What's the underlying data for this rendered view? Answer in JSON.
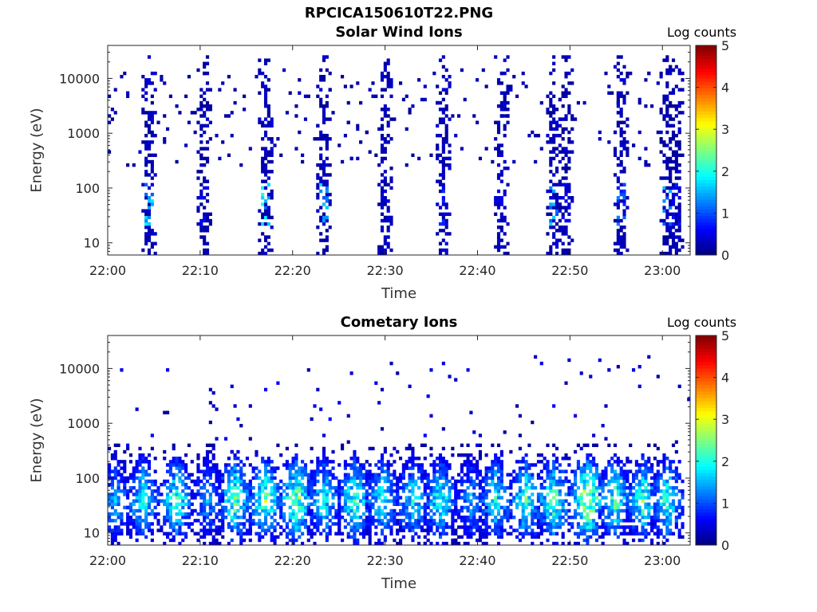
{
  "figure": {
    "title": "RPCICA150610T22.PNG"
  },
  "colorbar": {
    "label": "Log counts",
    "ticks": [
      "0",
      "1",
      "2",
      "3",
      "4",
      "5"
    ],
    "range": [
      0,
      5
    ],
    "colormap": "jet"
  },
  "chart_data": [
    {
      "type": "heatmap",
      "title": "Solar Wind Ions",
      "xlabel": "Time",
      "ylabel": "Energy (eV)",
      "x_ticks": [
        "22:00",
        "22:10",
        "22:20",
        "22:30",
        "22:40",
        "22:50",
        "23:00"
      ],
      "x_tick_minutes": [
        0,
        10,
        20,
        30,
        40,
        50,
        60
      ],
      "xlim_minutes": [
        0,
        63
      ],
      "y_ticks": [
        "10",
        "100",
        "1000",
        "10000"
      ],
      "y_tick_values": [
        10,
        100,
        1000,
        10000
      ],
      "ylim": [
        6,
        40000
      ],
      "yscale": "log",
      "colorbar_range": [
        0,
        5
      ],
      "bursts": [
        {
          "t": 4.2,
          "lo_val": 1.7,
          "scatter": 0.35
        },
        {
          "t": 10.3,
          "lo_val": 0.6,
          "scatter": 0.25
        },
        {
          "t": 16.8,
          "lo_val": 1.9,
          "scatter": 0.35
        },
        {
          "t": 23.3,
          "lo_val": 1.6,
          "scatter": 0.35
        },
        {
          "t": 29.8,
          "lo_val": 0.5,
          "scatter": 0.3
        },
        {
          "t": 36.3,
          "lo_val": 0.8,
          "scatter": 0.35
        },
        {
          "t": 42.5,
          "lo_val": 0.6,
          "scatter": 0.35
        },
        {
          "t": 48.0,
          "lo_val": 1.6,
          "scatter": 0.35
        },
        {
          "t": 49.5,
          "lo_val": 0.6,
          "scatter": 0.3
        },
        {
          "t": 55.5,
          "lo_val": 1.2,
          "scatter": 0.3
        },
        {
          "t": 60.3,
          "lo_val": 1.5,
          "scatter": 0.3
        },
        {
          "t": 61.5,
          "lo_val": 0.7,
          "scatter": 0.3
        }
      ]
    },
    {
      "type": "heatmap",
      "title": "Cometary Ions",
      "xlabel": "Time",
      "ylabel": "Energy (eV)",
      "x_ticks": [
        "22:00",
        "22:10",
        "22:20",
        "22:30",
        "22:40",
        "22:50",
        "23:00"
      ],
      "x_tick_minutes": [
        0,
        10,
        20,
        30,
        40,
        50,
        60
      ],
      "xlim_minutes": [
        0,
        63
      ],
      "y_ticks": [
        "10",
        "100",
        "1000",
        "10000"
      ],
      "y_tick_values": [
        10,
        100,
        1000,
        10000
      ],
      "ylim": [
        6,
        40000
      ],
      "yscale": "log",
      "colorbar_range": [
        0,
        5
      ],
      "bursts": [
        {
          "t": 0.8,
          "peak": 1.9
        },
        {
          "t": 3.8,
          "peak": 2.4
        },
        {
          "t": 7.2,
          "peak": 2.6
        },
        {
          "t": 10.5,
          "peak": 1.8
        },
        {
          "t": 13.6,
          "peak": 2.9
        },
        {
          "t": 16.9,
          "peak": 2.9
        },
        {
          "t": 20.1,
          "peak": 3.1
        },
        {
          "t": 23.2,
          "peak": 2.4
        },
        {
          "t": 26.6,
          "peak": 2.7
        },
        {
          "t": 29.6,
          "peak": 2.4
        },
        {
          "t": 32.8,
          "peak": 2.3
        },
        {
          "t": 35.7,
          "peak": 2.5
        },
        {
          "t": 39.0,
          "peak": 1.8
        },
        {
          "t": 41.8,
          "peak": 2.4
        },
        {
          "t": 45.2,
          "peak": 2.7
        },
        {
          "t": 48.2,
          "peak": 2.8
        },
        {
          "t": 51.7,
          "peak": 3.6
        },
        {
          "t": 54.8,
          "peak": 2.7
        },
        {
          "t": 57.7,
          "peak": 2.6
        },
        {
          "t": 60.4,
          "peak": 2.6
        }
      ]
    }
  ]
}
